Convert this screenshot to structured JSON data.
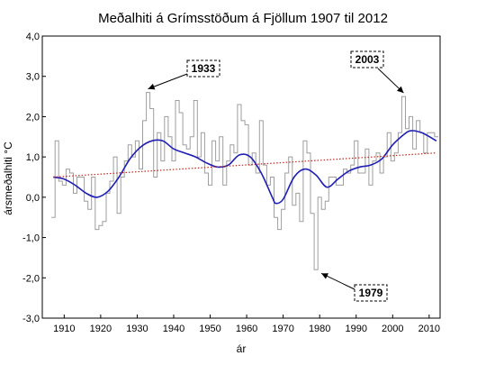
{
  "chart_data": {
    "type": "line",
    "title": "Meðalhiti á Grímsstöðum á Fjöllum 1907 til 2012",
    "xlabel": "ár",
    "ylabel": "ársmeðalhiti °C",
    "xlim": [
      1904,
      2013
    ],
    "ylim": [
      -3.0,
      4.0
    ],
    "x_ticks": [
      1910,
      1920,
      1930,
      1940,
      1950,
      1960,
      1970,
      1980,
      1990,
      2000,
      2010
    ],
    "x_tick_labels": [
      "1910",
      "1920",
      "1930",
      "1940",
      "1950",
      "1960",
      "1970",
      "1980",
      "1990",
      "2000",
      "2010"
    ],
    "y_ticks": [
      -3,
      -2,
      -1,
      0,
      1,
      2,
      3,
      4
    ],
    "y_tick_labels": [
      "-3,0",
      "-2,0",
      "-1,0",
      "0,0",
      "1,0",
      "2,0",
      "3,0",
      "4,0"
    ],
    "grid": false,
    "series": [
      {
        "name": "",
        "style": "step",
        "color": "#9e9e9e",
        "x": [
          1907,
          1908,
          1909,
          1910,
          1911,
          1912,
          1913,
          1914,
          1915,
          1916,
          1917,
          1918,
          1919,
          1920,
          1921,
          1922,
          1923,
          1924,
          1925,
          1926,
          1927,
          1928,
          1929,
          1930,
          1931,
          1932,
          1933,
          1934,
          1935,
          1936,
          1937,
          1938,
          1939,
          1940,
          1941,
          1942,
          1943,
          1944,
          1945,
          1946,
          1947,
          1948,
          1949,
          1950,
          1951,
          1952,
          1953,
          1954,
          1955,
          1956,
          1957,
          1958,
          1959,
          1960,
          1961,
          1962,
          1963,
          1964,
          1965,
          1966,
          1967,
          1968,
          1969,
          1970,
          1971,
          1972,
          1973,
          1974,
          1975,
          1976,
          1977,
          1978,
          1979,
          1980,
          1981,
          1982,
          1983,
          1984,
          1985,
          1986,
          1987,
          1988,
          1989,
          1990,
          1991,
          1992,
          1993,
          1994,
          1995,
          1996,
          1997,
          1998,
          1999,
          2000,
          2001,
          2002,
          2003,
          2004,
          2005,
          2006,
          2007,
          2008,
          2009,
          2010,
          2011,
          2012
        ],
        "values": [
          -0.5,
          1.4,
          0.4,
          0.3,
          0.7,
          0.6,
          0.1,
          0.5,
          0.5,
          -0.1,
          -0.3,
          0.5,
          -0.8,
          -0.7,
          -0.6,
          0.1,
          0.4,
          1.0,
          -0.4,
          0.5,
          0.9,
          1.3,
          1.0,
          1.4,
          0.7,
          1.9,
          2.6,
          2.2,
          0.5,
          1.6,
          0.9,
          2.0,
          1.5,
          0.9,
          2.4,
          2.1,
          1.3,
          1.2,
          1.5,
          2.4,
          1.0,
          1.6,
          0.6,
          0.3,
          1.4,
          0.9,
          1.5,
          0.3,
          0.9,
          1.3,
          1.1,
          2.3,
          1.9,
          1.8,
          0.8,
          1.1,
          0.6,
          1.9,
          0.8,
          0.3,
          0.5,
          -0.5,
          -0.8,
          -0.3,
          0.6,
          1.0,
          -0.2,
          0.1,
          -0.6,
          1.4,
          1.1,
          -0.4,
          -1.8,
          0.0,
          -0.3,
          -0.1,
          0.5,
          0.5,
          0.3,
          0.3,
          0.7,
          0.6,
          0.8,
          1.4,
          0.6,
          0.6,
          1.2,
          0.3,
          0.9,
          1.1,
          0.6,
          1.0,
          1.6,
          0.9,
          1.1,
          1.6,
          2.5,
          1.7,
          2.0,
          1.2,
          1.9,
          1.6,
          1.1,
          1.6,
          1.6,
          1.5
        ]
      },
      {
        "name": "",
        "style": "smooth",
        "color": "#1f1fb4",
        "x": [
          1907,
          1910,
          1913,
          1916,
          1919,
          1922,
          1925,
          1928,
          1931,
          1934,
          1937,
          1940,
          1943,
          1946,
          1949,
          1952,
          1955,
          1958,
          1961,
          1964,
          1967,
          1968,
          1970,
          1973,
          1976,
          1979,
          1982,
          1985,
          1988,
          1991,
          1994,
          1997,
          2000,
          2003,
          2005,
          2008,
          2012
        ],
        "values": [
          0.5,
          0.45,
          0.3,
          0.1,
          0.0,
          0.15,
          0.5,
          0.95,
          1.25,
          1.4,
          1.4,
          1.2,
          1.1,
          1.0,
          0.85,
          0.75,
          0.8,
          1.05,
          1.0,
          0.6,
          0.0,
          -0.15,
          -0.05,
          0.5,
          0.7,
          0.55,
          0.25,
          0.45,
          0.65,
          0.75,
          0.8,
          0.95,
          1.3,
          1.55,
          1.65,
          1.6,
          1.4
        ]
      },
      {
        "name": "",
        "style": "dotted",
        "color": "#c0281e",
        "x": [
          1907,
          2012
        ],
        "values": [
          0.5,
          1.1
        ]
      }
    ],
    "annotations": [
      {
        "label": "1933",
        "x": 1933,
        "y": 2.6
      },
      {
        "label": "2003",
        "x": 2003,
        "y": 2.5
      },
      {
        "label": "1979",
        "x": 1979,
        "y": -1.8
      }
    ]
  }
}
